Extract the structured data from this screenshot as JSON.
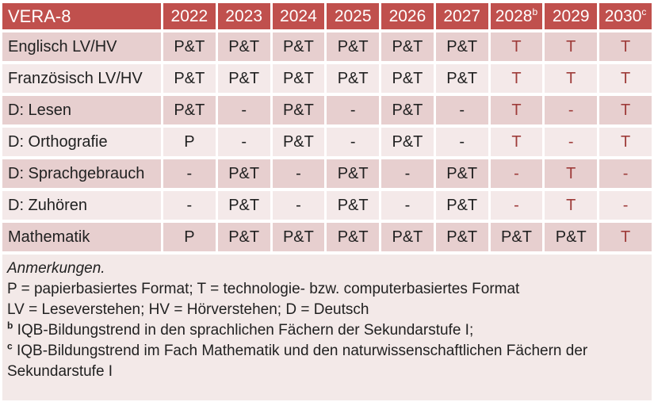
{
  "table": {
    "title": "VERA-8",
    "columns": [
      {
        "label": "2022",
        "sup": ""
      },
      {
        "label": "2023",
        "sup": ""
      },
      {
        "label": "2024",
        "sup": ""
      },
      {
        "label": "2025",
        "sup": ""
      },
      {
        "label": "2026",
        "sup": ""
      },
      {
        "label": "2027",
        "sup": ""
      },
      {
        "label": "2028",
        "sup": "b"
      },
      {
        "label": "2029",
        "sup": ""
      },
      {
        "label": "2030",
        "sup": "c"
      }
    ],
    "rows": [
      {
        "label": "Englisch LV/HV",
        "values": [
          "P&T",
          "P&T",
          "P&T",
          "P&T",
          "P&T",
          "P&T",
          "T",
          "T",
          "T"
        ]
      },
      {
        "label": "Französisch LV/HV",
        "values": [
          "P&T",
          "P&T",
          "P&T",
          "P&T",
          "P&T",
          "P&T",
          "T",
          "T",
          "T"
        ]
      },
      {
        "label": "D: Lesen",
        "values": [
          "P&T",
          "-",
          "P&T",
          "-",
          "P&T",
          "-",
          "T",
          "-",
          "T"
        ]
      },
      {
        "label": "D: Orthografie",
        "values": [
          "P",
          "-",
          "P&T",
          "-",
          "P&T",
          "-",
          "T",
          "-",
          "T"
        ]
      },
      {
        "label": "D: Sprachgebrauch",
        "values": [
          "-",
          "P&T",
          "-",
          "P&T",
          "-",
          "P&T",
          "-",
          "T",
          "-"
        ]
      },
      {
        "label": "D: Zuhören",
        "values": [
          "-",
          "P&T",
          "-",
          "P&T",
          "-",
          "P&T",
          "-",
          "T",
          "-"
        ]
      },
      {
        "label": "Mathematik",
        "values": [
          "P",
          "P&T",
          "P&T",
          "P&T",
          "P&T",
          "P&T",
          "P&T",
          "P&T",
          "T"
        ]
      }
    ],
    "accent_from_column_index": 6
  },
  "notes": {
    "heading": "Anmerkungen.",
    "formats": "P = papierbasiertes Format; T = technologie- bzw. computerbasiertes Format",
    "abbreviations": "LV = Leseverstehen; HV = Hörverstehen; D = Deutsch",
    "note_b_sup": "b",
    "note_b_text": " IQB-Bildungstrend in den sprachlichen Fächern der Sekundarstufe I;",
    "note_c_sup": "c",
    "note_c_text": " IQB-Bildungstrend im Fach Mathematik und den naturwissenschaftlichen Fächern der Sekundarstufe I"
  },
  "colors": {
    "header_bg": "#C0504D",
    "header_text": "#FFFFFF",
    "band_dark": "#E7CFCF",
    "band_light": "#F4E9E9",
    "notes_bg": "#F3E9E8",
    "accent": "#9E3C3A",
    "body_text": "#212121"
  }
}
